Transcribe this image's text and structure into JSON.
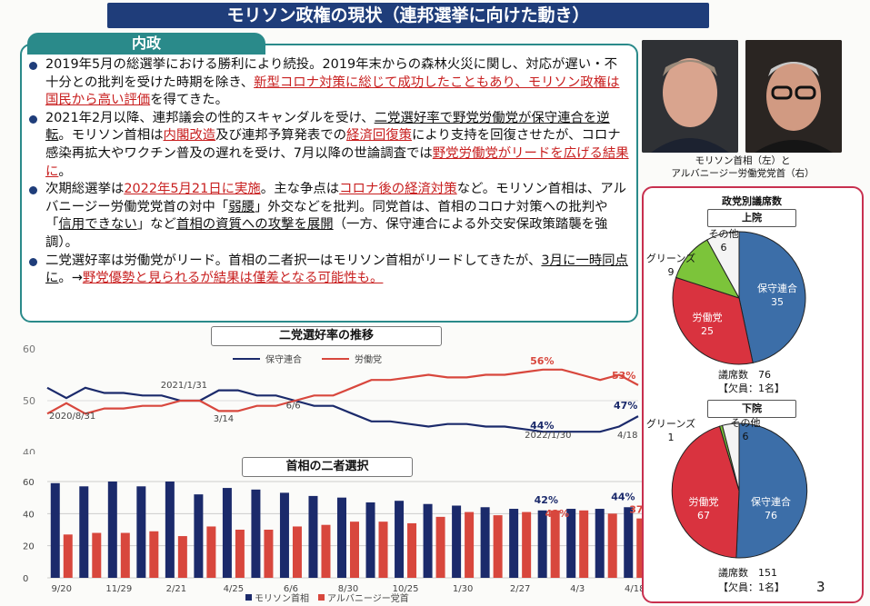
{
  "title": "モリソン政権の現状（連邦選挙に向けた動き）",
  "domestic": {
    "tab": "内政",
    "bullets": [
      [
        {
          "t": "2019年5月の総選挙における勝利により続投。2019年末からの森林火災に関し、対応が遅い・不十分との批判を受けた時期を除き、"
        },
        {
          "t": "新型コロナ対策に総じて成功したこともあり、モリソン政権は国民から高い評価",
          "s": "hl"
        },
        {
          "t": "を得てきた。"
        }
      ],
      [
        {
          "t": "2021年2月以降、連邦議会の性的スキャンダルを受け、"
        },
        {
          "t": "二党選好率で野党労働党が保守連合を逆転",
          "s": "ul"
        },
        {
          "t": "。モリソン首相は"
        },
        {
          "t": "内閣改造",
          "s": "hl"
        },
        {
          "t": "及び連邦予算発表での"
        },
        {
          "t": "経済回復策",
          "s": "hl"
        },
        {
          "t": "により支持を回復させたが、コロナ感染再拡大やワクチン普及の遅れを受け、7月以降の世論調査では"
        },
        {
          "t": "野党労働党がリードを広げる結果に",
          "s": "hl"
        },
        {
          "t": "。"
        }
      ],
      [
        {
          "t": "次期総選挙は"
        },
        {
          "t": "2022年5月21日に実施",
          "s": "hl"
        },
        {
          "t": "。主な争点は"
        },
        {
          "t": "コロナ後の経済対策",
          "s": "hl"
        },
        {
          "t": "など。モリソン首相は、アルバニージー労働党党首の対中「"
        },
        {
          "t": "弱腰",
          "s": "ul"
        },
        {
          "t": "」外交などを批判。同党首は、首相のコロナ対策への批判や「"
        },
        {
          "t": "信用できない",
          "s": "ul"
        },
        {
          "t": "」など"
        },
        {
          "t": "首相の資質への攻撃を展開",
          "s": "ul"
        },
        {
          "t": "（一方、保守連合による外交安保政策踏襲を強調）。"
        }
      ],
      [
        {
          "t": "二党選好率は労働党がリード。首相の二者択一はモリソン首相がリードしてきたが、"
        },
        {
          "t": "3月に一時同点に",
          "s": "ul"
        },
        {
          "t": "。→"
        },
        {
          "t": "野党優勢と見られるが結果は僅差となる可能性も。",
          "s": "hl"
        }
      ]
    ]
  },
  "photos": {
    "caption_line1": "モリソン首相（左）と",
    "caption_line2": "アルバニージー労働党党首（右）"
  },
  "colors": {
    "coalition": "#1b2a6b",
    "labor": "#d8473d",
    "pie_coalition": "#3c6ea8",
    "pie_labor": "#d9333f",
    "pie_greens": "#7cc43a",
    "pie_other": "#f4f4f4"
  },
  "chart_data": [
    {
      "type": "line",
      "title": "二党選好率の推移",
      "y_ticks": [
        "60",
        "50",
        "40"
      ],
      "ylim": [
        40,
        60
      ],
      "series": [
        {
          "name": "保守連合",
          "values": [
            52.5,
            50.5,
            52.5,
            51.5,
            51.5,
            51,
            51,
            50,
            50,
            52,
            52,
            51,
            51,
            50,
            49,
            49,
            47.5,
            46,
            46,
            45.5,
            45,
            45.5,
            45.5,
            45,
            45,
            44.5,
            44,
            44,
            44,
            44,
            45,
            47
          ]
        },
        {
          "name": "労働党",
          "values": [
            47.5,
            49.5,
            47.5,
            48.5,
            48.5,
            49,
            49,
            50,
            50,
            48,
            48,
            49,
            49,
            50,
            51,
            51,
            52.5,
            54,
            54,
            54.5,
            55,
            54.5,
            54.5,
            55,
            55,
            55.5,
            56,
            56,
            55,
            54,
            55,
            53
          ]
        }
      ],
      "annotations": [
        {
          "text": "2020/8/31"
        },
        {
          "text": "2021/1/31"
        },
        {
          "text": "3/14"
        },
        {
          "text": "6/6"
        },
        {
          "text": "2022/1/30"
        },
        {
          "text": "4/18"
        },
        {
          "text": "56%"
        },
        {
          "text": "53%"
        },
        {
          "text": "44%"
        },
        {
          "text": "47%"
        }
      ]
    },
    {
      "type": "bar",
      "title": "首相の二者選択",
      "y_ticks": [
        "60",
        "40",
        "20",
        "0"
      ],
      "ylim": [
        0,
        60
      ],
      "categories": [
        "9/20",
        "",
        "11/29",
        "",
        "2/21",
        "",
        "4/25",
        "",
        "6/6",
        "",
        "8/30",
        "",
        "10/25",
        "",
        "1/30",
        "",
        "2/27",
        "",
        "4/3",
        "",
        "4/18"
      ],
      "series": [
        {
          "name": "モリソン首相",
          "values": [
            59,
            57,
            60,
            57,
            60,
            52,
            56,
            55,
            53,
            51,
            50,
            47,
            48,
            46,
            45,
            44,
            43,
            42,
            43,
            43,
            44
          ]
        },
        {
          "name": "アルバニージー党首",
          "values": [
            27,
            28,
            28,
            29,
            26,
            32,
            30,
            30,
            32,
            33,
            35,
            35,
            34,
            38,
            41,
            39,
            41,
            42,
            42,
            40,
            37
          ]
        }
      ],
      "labels": {
        "m_42": "42%",
        "a_42": "42%",
        "m_44": "44%",
        "a_37": "37%"
      }
    },
    {
      "type": "pie",
      "title": "政党別議席数",
      "chamber": "上院",
      "slices": [
        {
          "name": "保守連合",
          "value": 35
        },
        {
          "name": "労働党",
          "value": 25
        },
        {
          "name": "グリーンズ",
          "value": 9
        },
        {
          "name": "その他",
          "value": 6
        }
      ],
      "seats_label": "議席数　76",
      "vacancy": "【欠員：1名】"
    },
    {
      "type": "pie",
      "chamber": "下院",
      "slices": [
        {
          "name": "保守連合",
          "value": 76
        },
        {
          "name": "労働党",
          "value": 67
        },
        {
          "name": "グリーンズ",
          "value": 1
        },
        {
          "name": "その他",
          "value": 6
        }
      ],
      "seats_label": "議席数　151",
      "vacancy": "【欠員：1名】"
    }
  ],
  "page_number": "3"
}
